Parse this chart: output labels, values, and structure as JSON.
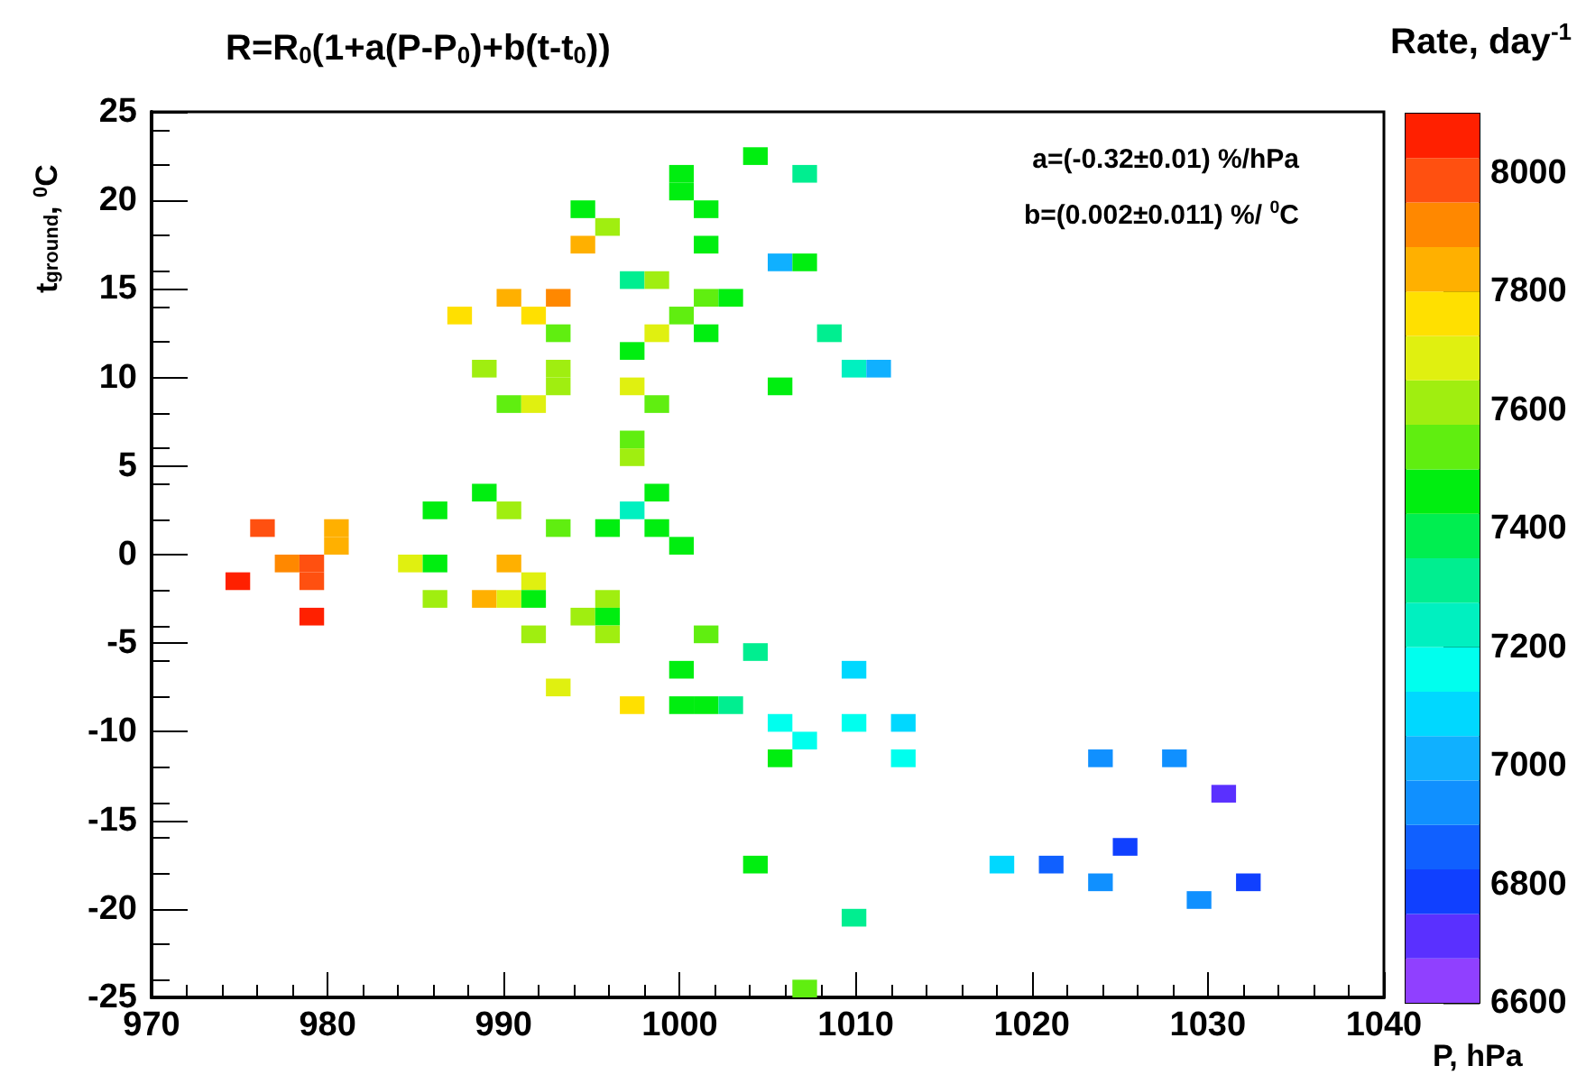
{
  "chart_data": {
    "type": "scatter",
    "title": "R=R$_{0}$(1+a(P-P$_{0}$)+b(t-t$_{0}$))",
    "xlabel": "P, hPa",
    "ylabel": "t$_{ground}$, $^{0}$C",
    "clabel": "Rate, day$^{-1}$",
    "annotations": [
      "a=(-0.32±0.01) %/hPa",
      "b=(0.002±0.011) %/ $^{0}$C"
    ],
    "marker": "square",
    "grid": false,
    "xlim": [
      970,
      1040
    ],
    "xticks": [
      970,
      980,
      990,
      1000,
      1010,
      1020,
      1030,
      1040
    ],
    "ylim": [
      -25,
      25
    ],
    "yticks": [
      -25,
      -20,
      -15,
      -10,
      -5,
      0,
      5,
      10,
      15,
      20,
      25
    ],
    "clim": [
      6600,
      8100
    ],
    "cticks": [
      6600,
      6800,
      7000,
      7200,
      7400,
      7600,
      7800,
      8000
    ],
    "x": [
      1004.3,
      1000.1,
      1000.1,
      1001.5,
      994.5,
      995.9,
      994.5,
      1001.5,
      997.3,
      998.7,
      990.3,
      993.1,
      1001.5,
      1002.9,
      987.5,
      991.7,
      1000.1,
      993.1,
      998.7,
      1001.5,
      997.3,
      988.9,
      993.1,
      993.1,
      997.3,
      1005.7,
      990.3,
      991.7,
      998.7,
      997.3,
      997.3,
      988.9,
      998.7,
      986.1,
      990.3,
      997.3,
      976.3,
      980.5,
      980.5,
      993.1,
      995.9,
      998.7,
      1000.1,
      974.9,
      977.7,
      979.1,
      979.1,
      979.1,
      984.7,
      986.1,
      990.3,
      991.7,
      986.1,
      988.9,
      990.3,
      991.7,
      995.9,
      994.5,
      995.9,
      991.7,
      995.9,
      1001.5,
      1004.3,
      1000.1,
      993.1,
      997.3,
      1000.1,
      1001.5,
      1002.9,
      1005.7,
      1005.7,
      1004.3,
      1009.9,
      1007.1,
      1009.9,
      1012.7,
      1012.7,
      1023.9,
      1028.1,
      1030.9,
      1025.3,
      1018.3,
      1021.1,
      1023.9,
      1032.3,
      1029.5,
      1009.9,
      1007.1,
      1007.1,
      1005.7,
      1007.1,
      1008.5,
      1009.9,
      1011.3
    ],
    "values": [
      22.5,
      21.5,
      20.5,
      19.5,
      19.5,
      18.5,
      17.5,
      17.5,
      15.5,
      15.5,
      14.5,
      14.5,
      14.5,
      14.5,
      13.5,
      13.5,
      13.5,
      12.5,
      12.5,
      12.5,
      11.5,
      10.5,
      10.5,
      9.5,
      9.5,
      9.5,
      8.5,
      8.5,
      8.5,
      6.5,
      5.5,
      3.5,
      3.5,
      2.5,
      2.5,
      2.5,
      1.5,
      1.5,
      0.5,
      1.5,
      1.5,
      1.5,
      0.5,
      -1.5,
      -0.5,
      -0.5,
      -1.5,
      -3.5,
      -0.5,
      -0.5,
      -0.5,
      -1.5,
      -2.5,
      -2.5,
      -2.5,
      -2.5,
      -2.5,
      -3.5,
      -3.5,
      -4.5,
      -4.5,
      -4.5,
      -5.5,
      -6.5,
      -7.5,
      -8.5,
      -8.5,
      -8.5,
      -8.5,
      -9.5,
      -11.5,
      -17.5,
      -6.5,
      -10.5,
      -9.5,
      -9.5,
      -11.5,
      -11.5,
      -11.5,
      -13.5,
      -16.5,
      -17.5,
      -17.5,
      -18.5,
      -18.5,
      -19.5,
      -20.5,
      -24.5,
      21.5,
      16.5,
      16.5,
      12.5,
      10.5,
      10.5
    ],
    "cvalues": [
      7450,
      7450,
      7450,
      7450,
      7450,
      7600,
      7800,
      7450,
      7300,
      7600,
      7800,
      7900,
      7550,
      7450,
      7750,
      7750,
      7550,
      7550,
      7650,
      7450,
      7450,
      7600,
      7600,
      7600,
      7700,
      7450,
      7550,
      7700,
      7550,
      7550,
      7600,
      7450,
      7450,
      7450,
      7600,
      7250,
      8000,
      7850,
      7850,
      7550,
      7450,
      7450,
      7450,
      8050,
      7900,
      8000,
      8000,
      8050,
      7700,
      7450,
      7850,
      7700,
      7600,
      7800,
      7700,
      7450,
      7600,
      7600,
      7450,
      7600,
      7600,
      7550,
      7300,
      7450,
      7700,
      7750,
      7450,
      7450,
      7300,
      7150,
      7450,
      7450,
      7050,
      7150,
      7150,
      7050,
      7150,
      6950,
      6950,
      6700,
      6750,
      7050,
      6850,
      6950,
      6750,
      6950,
      7300,
      7500,
      7300,
      7000,
      7450,
      7300,
      7200,
      7000
    ]
  }
}
